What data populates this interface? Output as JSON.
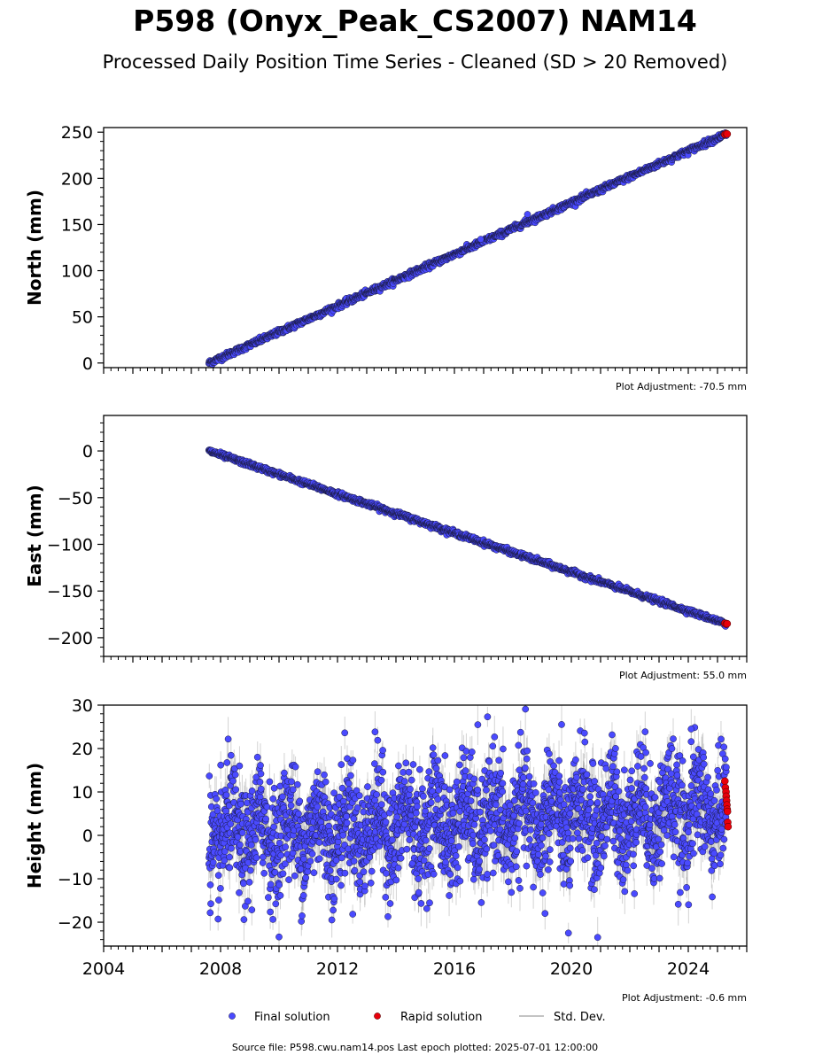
{
  "title": "P598 (Onyx_Peak_CS2007) NAM14",
  "subtitle": "Processed Daily Position Time Series - Cleaned (SD > 20 Removed)",
  "footer": "Source file: P598.cwu.nam14.pos  Last epoch plotted: 2025-07-01 12:00:00",
  "legend": {
    "final": "Final solution",
    "rapid": "Rapid solution",
    "std": "Std. Dev."
  },
  "colors": {
    "final": "#4a4aff",
    "rapid": "#e8000b",
    "std": "#b0b0b0",
    "edge": "#1a1a40"
  },
  "chart_data": [
    {
      "type": "scatter",
      "ylabel": "North (mm)",
      "adjustment": "Plot Adjustment: -70.5 mm",
      "xlim": [
        2004.0,
        2026.0
      ],
      "ylim": [
        -5,
        255
      ],
      "yticks": [
        0,
        50,
        100,
        150,
        200,
        250
      ],
      "yticklabels": [
        "0",
        "50",
        "100",
        "150",
        "200",
        "250"
      ],
      "xticks": [
        2004,
        2008,
        2012,
        2016,
        2020,
        2024
      ],
      "show_xticklabels": false,
      "series": [
        {
          "kind": "final",
          "trend_start": [
            2007.6,
            0
          ],
          "trend_end": [
            2025.3,
            248
          ],
          "x_range": [
            2007.6,
            2025.3
          ],
          "scatter_sd": 1.5,
          "std_dev": 0
        },
        {
          "kind": "rapid",
          "x": [
            2025.25,
            2025.3,
            2025.33
          ],
          "y": [
            247.5,
            248.5,
            248.0
          ]
        }
      ],
      "outliers": [
        {
          "x": 2018.5,
          "y": 161
        },
        {
          "x": 2016.9,
          "y": 134
        }
      ]
    },
    {
      "type": "scatter",
      "ylabel": "East (mm)",
      "adjustment": "Plot Adjustment: 55.0 mm",
      "xlim": [
        2004.0,
        2026.0
      ],
      "ylim": [
        -220,
        38
      ],
      "yticks": [
        -200,
        -150,
        -100,
        -50,
        0
      ],
      "yticklabels": [
        "−200",
        "−150",
        "−100",
        "−50",
        "0"
      ],
      "xticks": [
        2004,
        2008,
        2012,
        2016,
        2020,
        2024
      ],
      "show_xticklabels": false,
      "series": [
        {
          "kind": "final",
          "trend_start": [
            2007.6,
            0
          ],
          "trend_end": [
            2025.3,
            -185
          ],
          "x_range": [
            2007.6,
            2025.3
          ],
          "scatter_sd": 1.3,
          "std_dev": 0
        },
        {
          "kind": "rapid",
          "x": [
            2025.25,
            2025.3,
            2025.33
          ],
          "y": [
            -184.5,
            -185.5,
            -185.0
          ]
        }
      ],
      "outliers": []
    },
    {
      "type": "scatter",
      "ylabel": "Height (mm)",
      "adjustment": "Plot Adjustment: -0.6 mm",
      "xlim": [
        2004.0,
        2026.0
      ],
      "ylim": [
        -25.5,
        30
      ],
      "yticks": [
        -20,
        -10,
        0,
        10,
        20,
        30
      ],
      "yticklabels": [
        "−20",
        "−10",
        "0",
        "10",
        "20",
        "30"
      ],
      "xticks": [
        2004,
        2008,
        2012,
        2016,
        2020,
        2024
      ],
      "xticklabels": [
        "2004",
        "2008",
        "2012",
        "2016",
        "2020",
        "2024"
      ],
      "show_xticklabels": true,
      "series": [
        {
          "kind": "final",
          "trend_start": [
            2007.6,
            0
          ],
          "trend_end": [
            2025.3,
            6
          ],
          "x_range": [
            2007.6,
            2025.3
          ],
          "scatter_sd": 6.5,
          "seasonal_amp": 4.5,
          "std_dev": 3.5
        },
        {
          "kind": "rapid",
          "x": [
            2025.25,
            2025.27,
            2025.29,
            2025.3,
            2025.31,
            2025.32,
            2025.33,
            2025.34,
            2025.35,
            2025.36
          ],
          "y": [
            12.5,
            11,
            10,
            9,
            8,
            7,
            6,
            5.5,
            3,
            2
          ]
        }
      ],
      "outliers": [
        {
          "x": 2019.9,
          "y": -22.5
        },
        {
          "x": 2020.9,
          "y": -23.5
        },
        {
          "x": 2019.1,
          "y": -18
        },
        {
          "x": 2016.8,
          "y": 25.5
        },
        {
          "x": 2024.1,
          "y": 24.5
        }
      ]
    }
  ]
}
